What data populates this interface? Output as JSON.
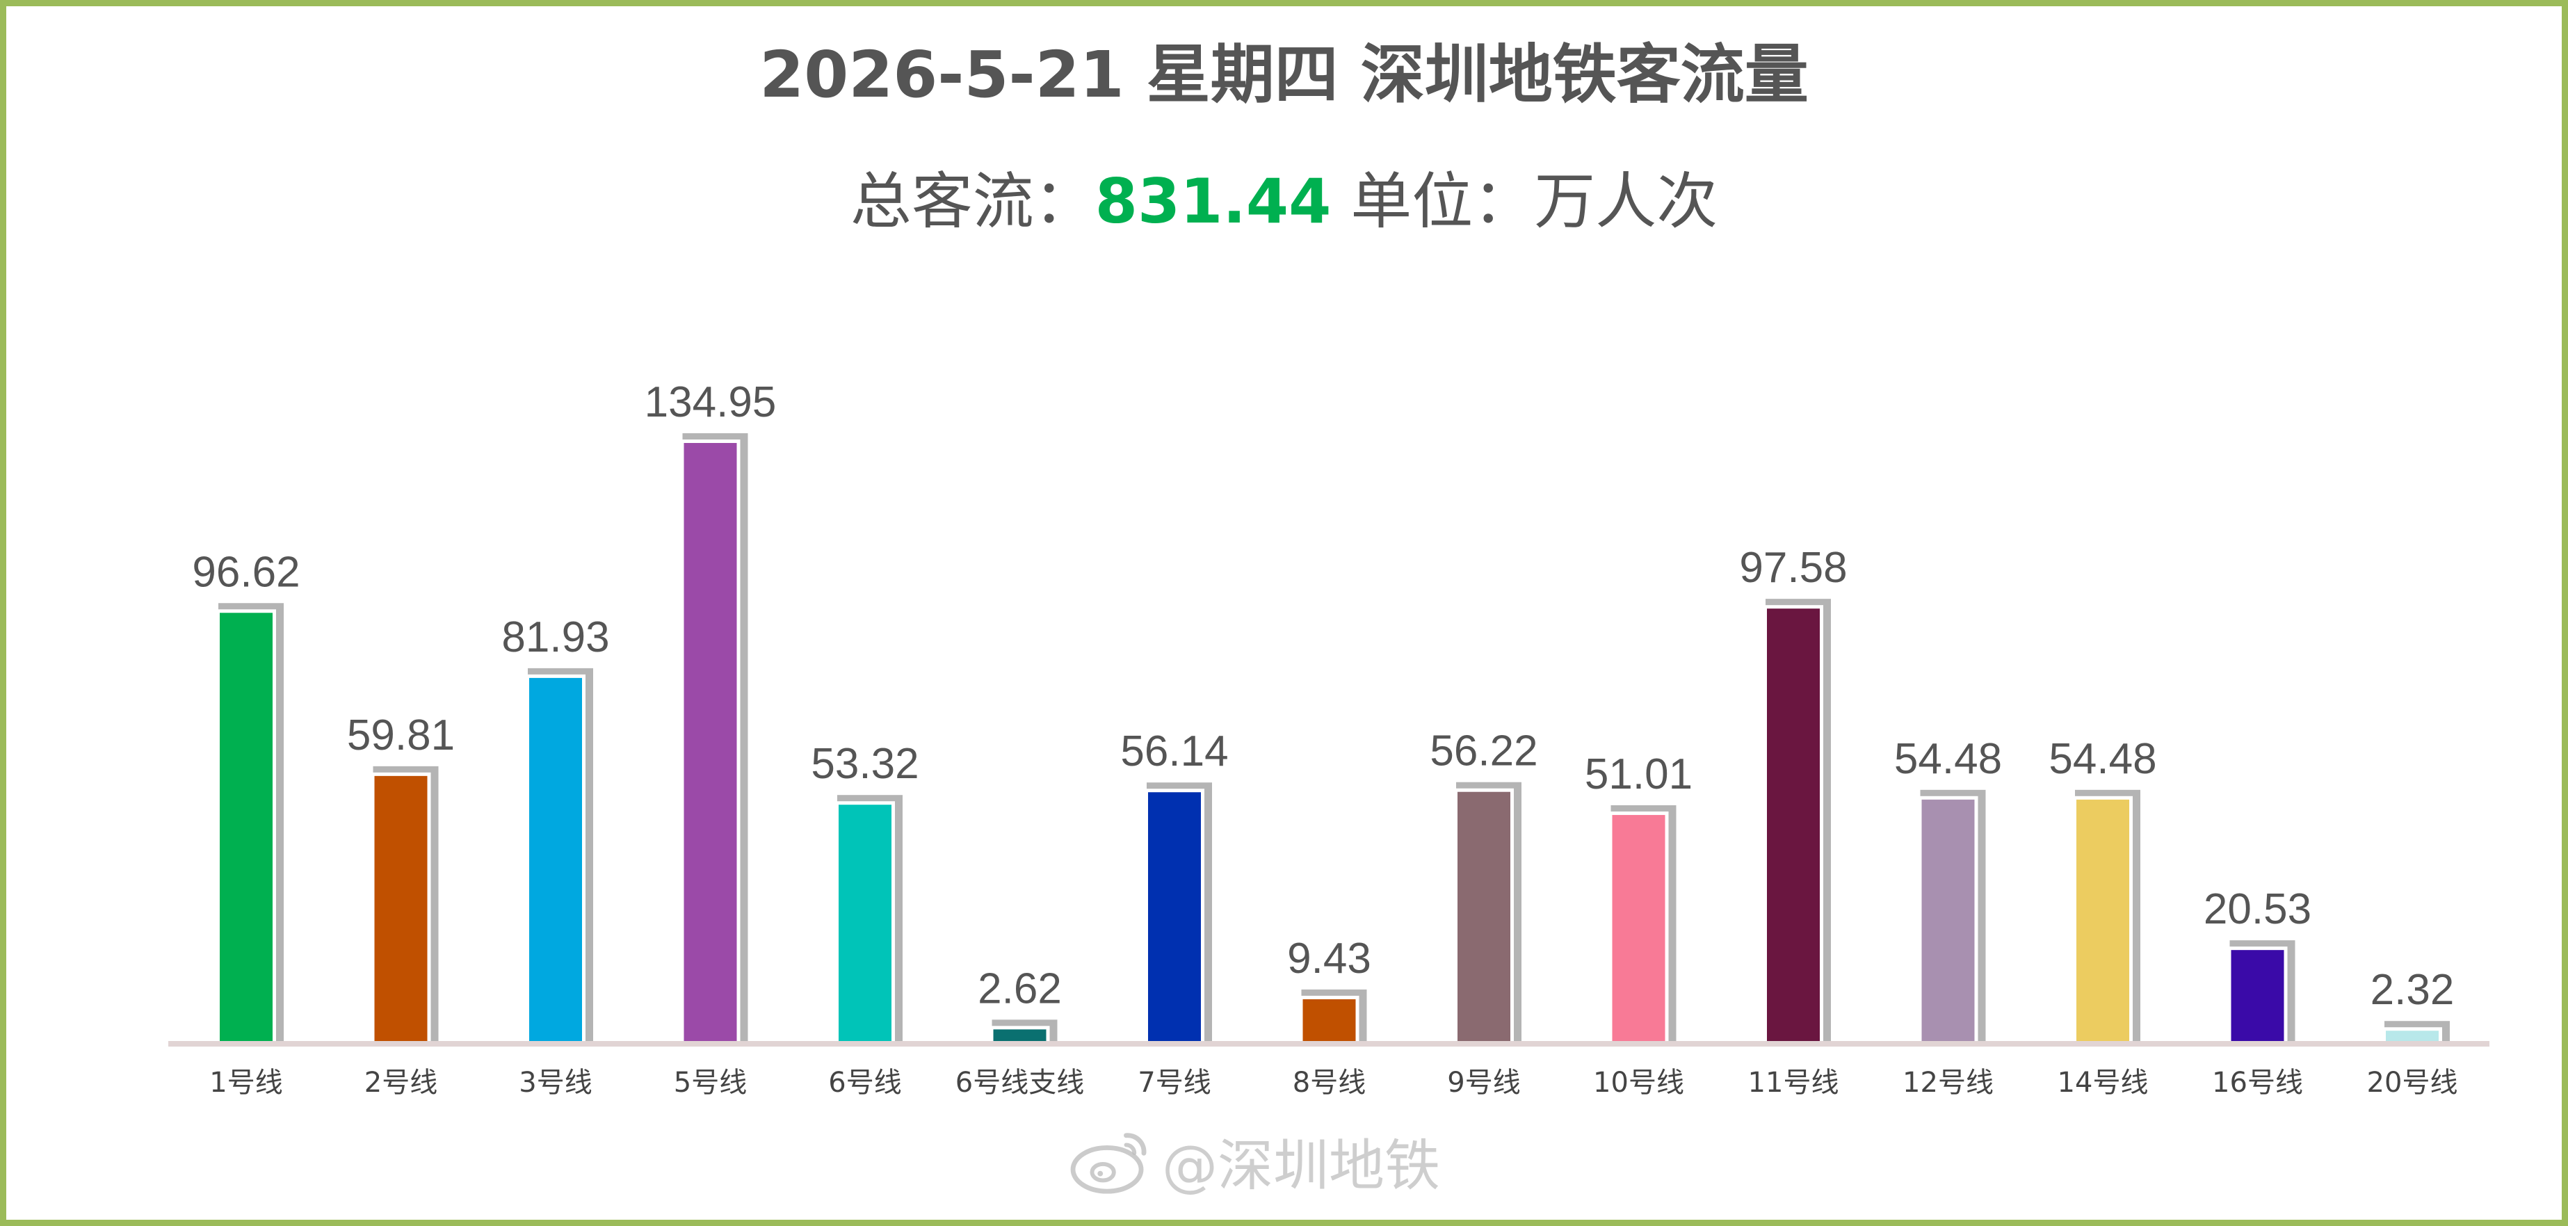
{
  "header": {
    "title": "2026-5-21 星期四 深圳地铁客流量",
    "total_label": "总客流：",
    "total_value": "831.44",
    "unit_label": " 单位：万人次"
  },
  "watermark": {
    "text": "@深圳地铁",
    "icon": "weibo-icon"
  },
  "colors": {
    "frame": "#9bbb59",
    "total_highlight": "#00b050",
    "shadow": "#b4b4b4",
    "baseline": "#e1d4d4"
  },
  "chart_data": {
    "type": "bar",
    "title": "2026-5-21 星期四 深圳地铁客流量",
    "unit": "万人次",
    "xlabel": "",
    "ylabel": "",
    "ylim": [
      0,
      134.95
    ],
    "grid": false,
    "categories": [
      "1号线",
      "2号线",
      "3号线",
      "5号线",
      "6号线",
      "6号线支线",
      "7号线",
      "8号线",
      "9号线",
      "10号线",
      "11号线",
      "12号线",
      "14号线",
      "16号线",
      "20号线"
    ],
    "values": [
      96.62,
      59.81,
      81.93,
      134.95,
      53.32,
      2.62,
      56.14,
      9.43,
      56.22,
      51.01,
      97.58,
      54.48,
      54.48,
      20.53,
      2.32
    ],
    "labels": [
      "96.62",
      "59.81",
      "81.93",
      "134.95",
      "53.32",
      "2.62",
      "56.14",
      "9.43",
      "56.22",
      "51.01",
      "97.58",
      "54.48",
      "54.48",
      "20.53",
      "2.32"
    ],
    "bar_colors": [
      "#00b050",
      "#c05000",
      "#00a8e0",
      "#9b4aa8",
      "#00c4b8",
      "#0a7070",
      "#0030b0",
      "#c05000",
      "#8a6a70",
      "#f87a96",
      "#6a1640",
      "#a890b0",
      "#eccc60",
      "#3a0aa8",
      "#b8e8ea"
    ]
  }
}
